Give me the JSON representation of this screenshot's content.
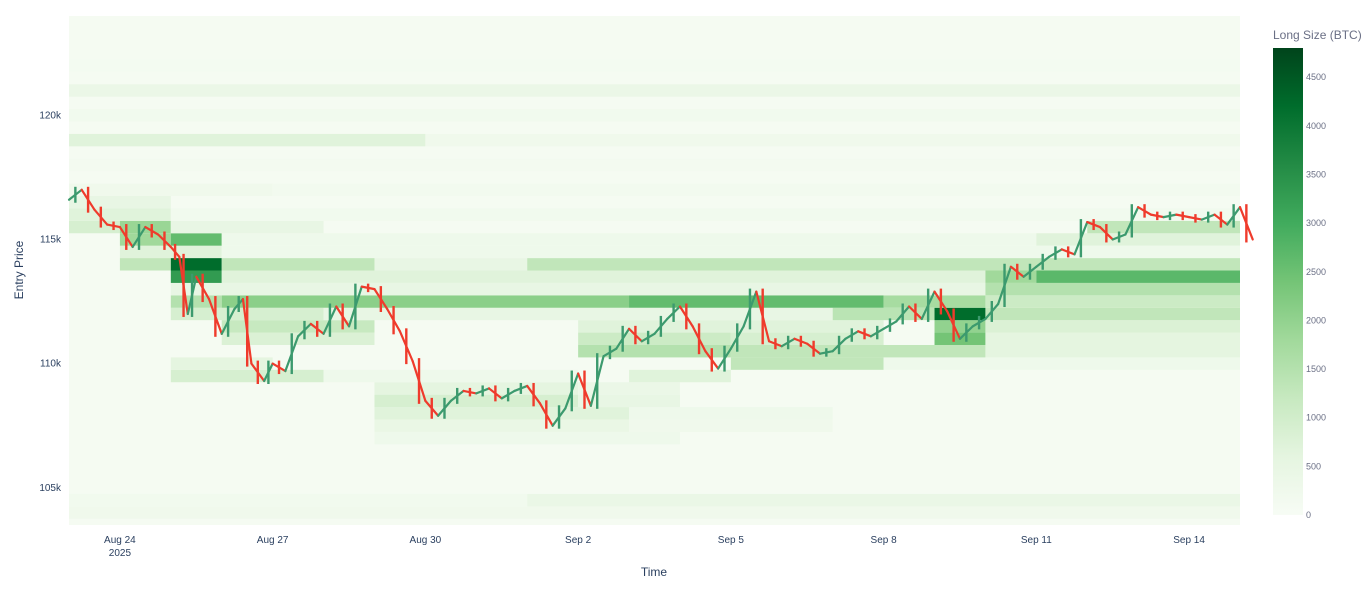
{
  "chart_data": {
    "type": "heatmap",
    "title": "",
    "xlabel": "Time",
    "ylabel": "Entry Price",
    "x_ticks": [
      {
        "date": "2025-08-24",
        "label": "Aug 24",
        "sublabel": "2025"
      },
      {
        "date": "2025-08-27",
        "label": "Aug 27"
      },
      {
        "date": "2025-08-30",
        "label": "Aug 30"
      },
      {
        "date": "2025-09-02",
        "label": "Sep 2"
      },
      {
        "date": "2025-09-05",
        "label": "Sep 5"
      },
      {
        "date": "2025-09-08",
        "label": "Sep 8"
      },
      {
        "date": "2025-09-11",
        "label": "Sep 11"
      },
      {
        "date": "2025-09-14",
        "label": "Sep 14"
      }
    ],
    "y_ticks": [
      {
        "value": 105000,
        "label": "105k"
      },
      {
        "value": 110000,
        "label": "110k"
      },
      {
        "value": 115000,
        "label": "115k"
      },
      {
        "value": 120000,
        "label": "120k"
      }
    ],
    "xlim": [
      "2025-08-23",
      "2025-09-15"
    ],
    "ylim": [
      103500,
      124000
    ],
    "grid": false,
    "colorbar": {
      "title": "Long Size (BTC)",
      "range": [
        0,
        4800
      ],
      "ticks": [
        0,
        500,
        1000,
        1500,
        2000,
        2500,
        3000,
        3500,
        4000,
        4500
      ],
      "colorscale": [
        "#f7fcf5",
        "#e5f5e0",
        "#c7e9c0",
        "#a1d99b",
        "#74c476",
        "#41ab5d",
        "#238b45",
        "#006d2c",
        "#00441b"
      ]
    },
    "heatmap": {
      "bin_size": 500,
      "levels": [
        {
          "price": 104000,
          "bands": [
            {
              "from": "2025-08-23",
              "to": "2025-09-15",
              "size": 250
            }
          ]
        },
        {
          "price": 104500,
          "bands": [
            {
              "from": "2025-08-23",
              "to": "2025-09-01",
              "size": 200
            },
            {
              "from": "2025-09-01",
              "to": "2025-09-15",
              "size": 420
            }
          ]
        },
        {
          "price": 107000,
          "bands": [
            {
              "from": "2025-08-29",
              "to": "2025-09-04",
              "size": 300
            }
          ]
        },
        {
          "price": 107500,
          "bands": [
            {
              "from": "2025-08-29",
              "to": "2025-09-03",
              "size": 450
            },
            {
              "from": "2025-09-03",
              "to": "2025-09-07",
              "size": 250
            }
          ]
        },
        {
          "price": 108000,
          "bands": [
            {
              "from": "2025-08-29",
              "to": "2025-09-03",
              "size": 700
            },
            {
              "from": "2025-09-03",
              "to": "2025-09-07",
              "size": 300
            }
          ]
        },
        {
          "price": 108500,
          "bands": [
            {
              "from": "2025-08-29",
              "to": "2025-09-02",
              "size": 900
            },
            {
              "from": "2025-09-02",
              "to": "2025-09-04",
              "size": 500
            }
          ]
        },
        {
          "price": 109000,
          "bands": [
            {
              "from": "2025-08-29",
              "to": "2025-09-02",
              "size": 600
            },
            {
              "from": "2025-09-02",
              "to": "2025-09-04",
              "size": 400
            }
          ]
        },
        {
          "price": 109500,
          "bands": [
            {
              "from": "2025-08-25",
              "to": "2025-08-28",
              "size": 900
            },
            {
              "from": "2025-08-28",
              "to": "2025-09-02",
              "size": 300
            },
            {
              "from": "2025-09-03",
              "to": "2025-09-05",
              "size": 700
            }
          ]
        },
        {
          "price": 110000,
          "bands": [
            {
              "from": "2025-08-25",
              "to": "2025-08-27",
              "size": 600
            },
            {
              "from": "2025-09-05",
              "to": "2025-09-08",
              "size": 1300
            },
            {
              "from": "2025-09-08",
              "to": "2025-09-15",
              "size": 300
            }
          ]
        },
        {
          "price": 110500,
          "bands": [
            {
              "from": "2025-09-02",
              "to": "2025-09-05",
              "size": 1500
            },
            {
              "from": "2025-09-05",
              "to": "2025-09-10",
              "size": 1300
            },
            {
              "from": "2025-09-10",
              "to": "2025-09-15",
              "size": 600
            }
          ]
        },
        {
          "price": 111000,
          "bands": [
            {
              "from": "2025-08-26",
              "to": "2025-08-29",
              "size": 800
            },
            {
              "from": "2025-09-02",
              "to": "2025-09-05",
              "size": 1100
            },
            {
              "from": "2025-09-05",
              "to": "2025-09-08",
              "size": 900
            },
            {
              "from": "2025-09-09",
              "to": "2025-09-10",
              "size": 2400
            },
            {
              "from": "2025-09-10",
              "to": "2025-09-15",
              "size": 600
            }
          ]
        },
        {
          "price": 111500,
          "bands": [
            {
              "from": "2025-08-26",
              "to": "2025-08-29",
              "size": 1200
            },
            {
              "from": "2025-09-02",
              "to": "2025-09-08",
              "size": 700
            },
            {
              "from": "2025-09-09",
              "to": "2025-09-10",
              "size": 2000
            },
            {
              "from": "2025-09-10",
              "to": "2025-09-15",
              "size": 800
            }
          ]
        },
        {
          "price": 112000,
          "bands": [
            {
              "from": "2025-08-25",
              "to": "2025-08-28",
              "size": 900
            },
            {
              "from": "2025-08-28",
              "to": "2025-09-07",
              "size": 500
            },
            {
              "from": "2025-09-07",
              "to": "2025-09-09",
              "size": 1400
            },
            {
              "from": "2025-09-09",
              "to": "2025-09-10",
              "size": 4200
            },
            {
              "from": "2025-09-10",
              "to": "2025-09-15",
              "size": 1300
            }
          ]
        },
        {
          "price": 112500,
          "bands": [
            {
              "from": "2025-08-25",
              "to": "2025-08-26",
              "size": 1500
            },
            {
              "from": "2025-08-26",
              "to": "2025-09-03",
              "size": 2100
            },
            {
              "from": "2025-09-03",
              "to": "2025-09-08",
              "size": 2600
            },
            {
              "from": "2025-09-08",
              "to": "2025-09-10",
              "size": 1700
            },
            {
              "from": "2025-09-10",
              "to": "2025-09-15",
              "size": 1100
            }
          ]
        },
        {
          "price": 113000,
          "bands": [
            {
              "from": "2025-08-25",
              "to": "2025-09-10",
              "size": 500
            },
            {
              "from": "2025-09-10",
              "to": "2025-09-15",
              "size": 1500
            }
          ]
        },
        {
          "price": 113500,
          "bands": [
            {
              "from": "2025-08-25",
              "to": "2025-08-26",
              "size": 3300
            },
            {
              "from": "2025-08-26",
              "to": "2025-09-10",
              "size": 700
            },
            {
              "from": "2025-09-10",
              "to": "2025-09-11",
              "size": 1800
            },
            {
              "from": "2025-09-11",
              "to": "2025-09-15",
              "size": 2700
            }
          ]
        },
        {
          "price": 114000,
          "bands": [
            {
              "from": "2025-08-24",
              "to": "2025-08-25",
              "size": 1300
            },
            {
              "from": "2025-08-25",
              "to": "2025-08-26",
              "size": 4200
            },
            {
              "from": "2025-08-26",
              "to": "2025-08-29",
              "size": 1300
            },
            {
              "from": "2025-08-29",
              "to": "2025-09-01",
              "size": 500
            },
            {
              "from": "2025-09-01",
              "to": "2025-09-15",
              "size": 1300
            }
          ]
        },
        {
          "price": 114500,
          "bands": [
            {
              "from": "2025-08-24",
              "to": "2025-08-26",
              "size": 700
            },
            {
              "from": "2025-08-26",
              "to": "2025-09-15",
              "size": 300
            }
          ]
        },
        {
          "price": 115000,
          "bands": [
            {
              "from": "2025-08-24",
              "to": "2025-08-25",
              "size": 1800
            },
            {
              "from": "2025-08-25",
              "to": "2025-08-26",
              "size": 2600
            },
            {
              "from": "2025-08-26",
              "to": "2025-09-11",
              "size": 300
            },
            {
              "from": "2025-09-11",
              "to": "2025-09-15",
              "size": 700
            }
          ]
        },
        {
          "price": 115500,
          "bands": [
            {
              "from": "2025-08-23",
              "to": "2025-08-24",
              "size": 900
            },
            {
              "from": "2025-08-24",
              "to": "2025-08-25",
              "size": 1900
            },
            {
              "from": "2025-08-25",
              "to": "2025-08-28",
              "size": 500
            },
            {
              "from": "2025-09-12",
              "to": "2025-09-15",
              "size": 1300
            }
          ]
        },
        {
          "price": 116000,
          "bands": [
            {
              "from": "2025-08-23",
              "to": "2025-08-25",
              "size": 700
            },
            {
              "from": "2025-08-25",
              "to": "2025-09-15",
              "size": 200
            }
          ]
        },
        {
          "price": 116500,
          "bands": [
            {
              "from": "2025-08-23",
              "to": "2025-08-25",
              "size": 500
            }
          ]
        },
        {
          "price": 117000,
          "bands": [
            {
              "from": "2025-08-23",
              "to": "2025-08-27",
              "size": 250
            },
            {
              "from": "2025-08-27",
              "to": "2025-09-15",
              "size": 180
            }
          ]
        },
        {
          "price": 118000,
          "bands": [
            {
              "from": "2025-08-23",
              "to": "2025-09-15",
              "size": 150
            }
          ]
        },
        {
          "price": 119000,
          "bands": [
            {
              "from": "2025-08-23",
              "to": "2025-08-30",
              "size": 700
            },
            {
              "from": "2025-08-30",
              "to": "2025-09-15",
              "size": 250
            }
          ]
        },
        {
          "price": 120000,
          "bands": [
            {
              "from": "2025-08-23",
              "to": "2025-09-15",
              "size": 200
            }
          ]
        },
        {
          "price": 121000,
          "bands": [
            {
              "from": "2025-08-23",
              "to": "2025-09-15",
              "size": 400
            }
          ]
        },
        {
          "price": 122000,
          "bands": [
            {
              "from": "2025-08-23",
              "to": "2025-09-15",
              "size": 120
            }
          ]
        }
      ],
      "background_size": 80
    },
    "price_series": {
      "name": "",
      "up_color": "#3c9a6e",
      "down_color": "#ef3b2c",
      "points": [
        [
          "2025-08-23T00",
          116600
        ],
        [
          "2025-08-23T06",
          117000
        ],
        [
          "2025-08-23T12",
          116200
        ],
        [
          "2025-08-23T18",
          115600
        ],
        [
          "2025-08-24T00",
          115500
        ],
        [
          "2025-08-24T06",
          114700
        ],
        [
          "2025-08-24T12",
          115500
        ],
        [
          "2025-08-24T18",
          115200
        ],
        [
          "2025-08-25T00",
          114700
        ],
        [
          "2025-08-25T04",
          114300
        ],
        [
          "2025-08-25T08",
          112000
        ],
        [
          "2025-08-25T12",
          113500
        ],
        [
          "2025-08-25T18",
          112600
        ],
        [
          "2025-08-26T00",
          111200
        ],
        [
          "2025-08-26T06",
          112200
        ],
        [
          "2025-08-26T10",
          112600
        ],
        [
          "2025-08-26T14",
          110000
        ],
        [
          "2025-08-26T20",
          109300
        ],
        [
          "2025-08-27T00",
          110000
        ],
        [
          "2025-08-27T06",
          109700
        ],
        [
          "2025-08-27T12",
          111100
        ],
        [
          "2025-08-27T18",
          111600
        ],
        [
          "2025-08-28T00",
          111200
        ],
        [
          "2025-08-28T06",
          112300
        ],
        [
          "2025-08-28T12",
          111500
        ],
        [
          "2025-08-28T18",
          113100
        ],
        [
          "2025-08-29T00",
          113000
        ],
        [
          "2025-08-29T06",
          112200
        ],
        [
          "2025-08-29T12",
          111300
        ],
        [
          "2025-08-29T18",
          110100
        ],
        [
          "2025-08-30T00",
          108500
        ],
        [
          "2025-08-30T06",
          107900
        ],
        [
          "2025-08-30T12",
          108500
        ],
        [
          "2025-08-30T18",
          108900
        ],
        [
          "2025-08-31T00",
          108800
        ],
        [
          "2025-08-31T06",
          109000
        ],
        [
          "2025-08-31T12",
          108600
        ],
        [
          "2025-08-31T18",
          108900
        ],
        [
          "2025-09-01T00",
          109100
        ],
        [
          "2025-09-01T06",
          108400
        ],
        [
          "2025-09-01T12",
          107500
        ],
        [
          "2025-09-01T18",
          108200
        ],
        [
          "2025-09-02T00",
          109600
        ],
        [
          "2025-09-02T06",
          108300
        ],
        [
          "2025-09-02T12",
          110300
        ],
        [
          "2025-09-02T18",
          110600
        ],
        [
          "2025-09-03T00",
          111400
        ],
        [
          "2025-09-03T06",
          110900
        ],
        [
          "2025-09-03T12",
          111200
        ],
        [
          "2025-09-03T18",
          111800
        ],
        [
          "2025-09-04T00",
          112300
        ],
        [
          "2025-09-04T06",
          111500
        ],
        [
          "2025-09-04T12",
          110500
        ],
        [
          "2025-09-04T18",
          109800
        ],
        [
          "2025-09-05T00",
          110600
        ],
        [
          "2025-09-05T06",
          111500
        ],
        [
          "2025-09-05T12",
          112900
        ],
        [
          "2025-09-05T18",
          110900
        ],
        [
          "2025-09-06T00",
          110700
        ],
        [
          "2025-09-06T06",
          111000
        ],
        [
          "2025-09-06T12",
          110800
        ],
        [
          "2025-09-06T18",
          110400
        ],
        [
          "2025-09-07T00",
          110500
        ],
        [
          "2025-09-07T06",
          111000
        ],
        [
          "2025-09-07T12",
          111300
        ],
        [
          "2025-09-07T18",
          111100
        ],
        [
          "2025-09-08T00",
          111400
        ],
        [
          "2025-09-08T06",
          111700
        ],
        [
          "2025-09-08T12",
          112300
        ],
        [
          "2025-09-08T18",
          111800
        ],
        [
          "2025-09-09T00",
          112900
        ],
        [
          "2025-09-09T06",
          112100
        ],
        [
          "2025-09-09T12",
          111000
        ],
        [
          "2025-09-09T18",
          111500
        ],
        [
          "2025-09-10T00",
          111800
        ],
        [
          "2025-09-10T06",
          112400
        ],
        [
          "2025-09-10T12",
          113900
        ],
        [
          "2025-09-10T18",
          113500
        ],
        [
          "2025-09-11T00",
          113900
        ],
        [
          "2025-09-11T06",
          114300
        ],
        [
          "2025-09-11T12",
          114600
        ],
        [
          "2025-09-11T18",
          114400
        ],
        [
          "2025-09-12T00",
          115700
        ],
        [
          "2025-09-12T06",
          115500
        ],
        [
          "2025-09-12T12",
          115000
        ],
        [
          "2025-09-12T18",
          115200
        ],
        [
          "2025-09-13T00",
          116300
        ],
        [
          "2025-09-13T06",
          116000
        ],
        [
          "2025-09-13T12",
          115900
        ],
        [
          "2025-09-13T18",
          116000
        ],
        [
          "2025-09-14T00",
          115900
        ],
        [
          "2025-09-14T06",
          115800
        ],
        [
          "2025-09-14T12",
          116000
        ],
        [
          "2025-09-14T18",
          115600
        ],
        [
          "2025-09-15T00",
          116300
        ],
        [
          "2025-09-15T06",
          115000
        ]
      ]
    }
  }
}
